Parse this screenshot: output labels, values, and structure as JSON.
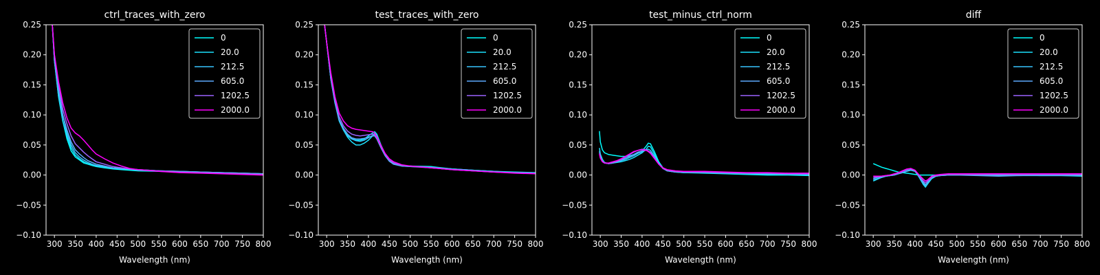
{
  "chart_data": [
    {
      "type": "line",
      "title": "ctrl_traces_with_zero",
      "xlabel": "Wavelength (nm)",
      "ylabel": "",
      "xlim": [
        280,
        800
      ],
      "ylim": [
        -0.1,
        0.25
      ],
      "x_ticks": [
        300,
        350,
        400,
        450,
        500,
        550,
        600,
        650,
        700,
        750,
        800
      ],
      "y_ticks": [
        -0.1,
        -0.05,
        0.0,
        0.05,
        0.1,
        0.15,
        0.2,
        0.25
      ],
      "x_tick_labels": [
        "300",
        "350",
        "400",
        "450",
        "500",
        "550",
        "600",
        "650",
        "700",
        "750",
        "800"
      ],
      "y_tick_labels": [
        "−0.10",
        "−0.05",
        "0.00",
        "0.05",
        "0.10",
        "0.15",
        "0.20",
        "0.25"
      ],
      "legend": "top-right",
      "grid": false,
      "x": [
        295,
        300,
        310,
        320,
        330,
        340,
        350,
        360,
        370,
        380,
        390,
        400,
        420,
        440,
        460,
        480,
        500,
        550,
        600,
        650,
        700,
        750,
        800
      ],
      "series": [
        {
          "name": "0",
          "color": "#00ffff",
          "values": [
            0.25,
            0.19,
            0.13,
            0.09,
            0.06,
            0.04,
            0.03,
            0.025,
            0.02,
            0.018,
            0.016,
            0.014,
            0.012,
            0.01,
            0.009,
            0.008,
            0.007,
            0.006,
            0.005,
            0.004,
            0.003,
            0.002,
            0.002
          ]
        },
        {
          "name": "20.0",
          "color": "#1ce3ff",
          "values": [
            0.25,
            0.19,
            0.13,
            0.09,
            0.065,
            0.045,
            0.033,
            0.027,
            0.022,
            0.019,
            0.017,
            0.015,
            0.013,
            0.011,
            0.01,
            0.009,
            0.008,
            0.007,
            0.006,
            0.005,
            0.004,
            0.003,
            0.002
          ]
        },
        {
          "name": "212.5",
          "color": "#39c6ff",
          "values": [
            0.25,
            0.19,
            0.14,
            0.1,
            0.07,
            0.05,
            0.037,
            0.03,
            0.025,
            0.021,
            0.018,
            0.016,
            0.014,
            0.012,
            0.011,
            0.01,
            0.009,
            0.007,
            0.006,
            0.005,
            0.004,
            0.003,
            0.002
          ]
        },
        {
          "name": "605.0",
          "color": "#5daaff",
          "values": [
            0.25,
            0.19,
            0.14,
            0.1,
            0.075,
            0.055,
            0.042,
            0.035,
            0.029,
            0.024,
            0.021,
            0.018,
            0.015,
            0.012,
            0.011,
            0.01,
            0.009,
            0.007,
            0.006,
            0.005,
            0.004,
            0.003,
            0.002
          ]
        },
        {
          "name": "1202.5",
          "color": "#9c63ff",
          "values": [
            0.25,
            0.2,
            0.15,
            0.11,
            0.085,
            0.065,
            0.052,
            0.045,
            0.038,
            0.032,
            0.027,
            0.022,
            0.018,
            0.014,
            0.012,
            0.01,
            0.009,
            0.007,
            0.005,
            0.004,
            0.003,
            0.002,
            0.001
          ]
        },
        {
          "name": "2000.0",
          "color": "#ff00ff",
          "values": [
            0.25,
            0.2,
            0.155,
            0.12,
            0.095,
            0.078,
            0.07,
            0.065,
            0.058,
            0.05,
            0.042,
            0.035,
            0.027,
            0.02,
            0.015,
            0.011,
            0.009,
            0.006,
            0.004,
            0.003,
            0.002,
            0.001,
            0.0
          ]
        }
      ]
    },
    {
      "type": "line",
      "title": "test_traces_with_zero",
      "xlabel": "Wavelength (nm)",
      "ylabel": "",
      "xlim": [
        280,
        800
      ],
      "ylim": [
        -0.1,
        0.25
      ],
      "x_ticks": [
        300,
        350,
        400,
        450,
        500,
        550,
        600,
        650,
        700,
        750,
        800
      ],
      "y_ticks": [
        -0.1,
        -0.05,
        0.0,
        0.05,
        0.1,
        0.15,
        0.2,
        0.25
      ],
      "x_tick_labels": [
        "300",
        "350",
        "400",
        "450",
        "500",
        "550",
        "600",
        "650",
        "700",
        "750",
        "800"
      ],
      "y_tick_labels": [
        "−0.10",
        "−0.05",
        "0.00",
        "0.05",
        "0.10",
        "0.15",
        "0.20",
        "0.25"
      ],
      "legend": "top-right",
      "grid": false,
      "x": [
        295,
        300,
        310,
        320,
        330,
        340,
        350,
        360,
        370,
        380,
        390,
        400,
        410,
        415,
        420,
        430,
        440,
        450,
        460,
        480,
        500,
        550,
        600,
        650,
        700,
        750,
        800
      ],
      "series": [
        {
          "name": "0",
          "color": "#00ffff",
          "values": [
            0.25,
            0.22,
            0.16,
            0.12,
            0.09,
            0.075,
            0.065,
            0.06,
            0.058,
            0.058,
            0.06,
            0.065,
            0.07,
            0.072,
            0.068,
            0.05,
            0.035,
            0.025,
            0.02,
            0.016,
            0.015,
            0.014,
            0.01,
            0.008,
            0.006,
            0.005,
            0.004
          ]
        },
        {
          "name": "20.0",
          "color": "#1ce3ff",
          "values": [
            0.25,
            0.22,
            0.16,
            0.12,
            0.09,
            0.075,
            0.063,
            0.055,
            0.05,
            0.05,
            0.053,
            0.058,
            0.065,
            0.07,
            0.066,
            0.048,
            0.033,
            0.023,
            0.018,
            0.015,
            0.014,
            0.013,
            0.01,
            0.008,
            0.006,
            0.004,
            0.003
          ]
        },
        {
          "name": "212.5",
          "color": "#39c6ff",
          "values": [
            0.25,
            0.22,
            0.16,
            0.12,
            0.092,
            0.077,
            0.066,
            0.06,
            0.057,
            0.056,
            0.058,
            0.062,
            0.066,
            0.067,
            0.063,
            0.047,
            0.033,
            0.024,
            0.019,
            0.016,
            0.015,
            0.013,
            0.01,
            0.008,
            0.006,
            0.004,
            0.003
          ]
        },
        {
          "name": "605.0",
          "color": "#5daaff",
          "values": [
            0.25,
            0.22,
            0.16,
            0.12,
            0.092,
            0.078,
            0.068,
            0.062,
            0.06,
            0.06,
            0.061,
            0.063,
            0.065,
            0.065,
            0.06,
            0.045,
            0.032,
            0.023,
            0.018,
            0.015,
            0.014,
            0.012,
            0.009,
            0.007,
            0.005,
            0.004,
            0.003
          ]
        },
        {
          "name": "1202.5",
          "color": "#9c63ff",
          "values": [
            0.25,
            0.22,
            0.165,
            0.125,
            0.097,
            0.082,
            0.073,
            0.068,
            0.066,
            0.065,
            0.066,
            0.067,
            0.068,
            0.067,
            0.062,
            0.047,
            0.034,
            0.025,
            0.02,
            0.016,
            0.015,
            0.012,
            0.009,
            0.007,
            0.005,
            0.004,
            0.003
          ]
        },
        {
          "name": "2000.0",
          "color": "#ff00ff",
          "values": [
            0.25,
            0.22,
            0.17,
            0.13,
            0.103,
            0.09,
            0.082,
            0.078,
            0.076,
            0.075,
            0.074,
            0.073,
            0.072,
            0.07,
            0.064,
            0.049,
            0.036,
            0.027,
            0.022,
            0.017,
            0.015,
            0.012,
            0.009,
            0.007,
            0.005,
            0.003,
            0.002
          ]
        }
      ]
    },
    {
      "type": "line",
      "title": "test_minus_ctrl_norm",
      "xlabel": "Wavelength (nm)",
      "ylabel": "",
      "xlim": [
        280,
        800
      ],
      "ylim": [
        -0.1,
        0.25
      ],
      "x_ticks": [
        300,
        350,
        400,
        450,
        500,
        550,
        600,
        650,
        700,
        750,
        800
      ],
      "y_ticks": [
        -0.1,
        -0.05,
        0.0,
        0.05,
        0.1,
        0.15,
        0.2,
        0.25
      ],
      "x_tick_labels": [
        "300",
        "350",
        "400",
        "450",
        "500",
        "550",
        "600",
        "650",
        "700",
        "750",
        "800"
      ],
      "y_tick_labels": [
        "−0.10",
        "−0.05",
        "0.00",
        "0.05",
        "0.10",
        "0.15",
        "0.20",
        "0.25"
      ],
      "legend": "top-right",
      "grid": false,
      "x": [
        298,
        300,
        305,
        310,
        320,
        330,
        340,
        350,
        360,
        370,
        380,
        390,
        400,
        410,
        415,
        420,
        430,
        440,
        450,
        460,
        480,
        500,
        550,
        600,
        650,
        700,
        750,
        800
      ],
      "series": [
        {
          "name": "0",
          "color": "#00ffff",
          "values": [
            0.073,
            0.055,
            0.042,
            0.037,
            0.034,
            0.033,
            0.032,
            0.031,
            0.031,
            0.032,
            0.034,
            0.037,
            0.04,
            0.048,
            0.053,
            0.052,
            0.038,
            0.022,
            0.012,
            0.008,
            0.005,
            0.004,
            0.003,
            0.002,
            0.001,
            0.0,
            0.0,
            -0.001
          ]
        },
        {
          "name": "20.0",
          "color": "#1ce3ff",
          "values": [
            0.045,
            0.035,
            0.026,
            0.021,
            0.019,
            0.02,
            0.021,
            0.022,
            0.024,
            0.026,
            0.029,
            0.033,
            0.037,
            0.043,
            0.048,
            0.047,
            0.034,
            0.02,
            0.011,
            0.007,
            0.005,
            0.004,
            0.004,
            0.003,
            0.002,
            0.001,
            0.001,
            0.0
          ]
        },
        {
          "name": "212.5",
          "color": "#39c6ff",
          "values": [
            0.04,
            0.031,
            0.024,
            0.02,
            0.019,
            0.02,
            0.022,
            0.024,
            0.026,
            0.029,
            0.032,
            0.036,
            0.039,
            0.042,
            0.043,
            0.041,
            0.031,
            0.019,
            0.011,
            0.007,
            0.005,
            0.005,
            0.004,
            0.003,
            0.002,
            0.002,
            0.001,
            0.001
          ]
        },
        {
          "name": "605.0",
          "color": "#5daaff",
          "values": [
            0.038,
            0.03,
            0.023,
            0.02,
            0.019,
            0.02,
            0.022,
            0.025,
            0.028,
            0.031,
            0.034,
            0.038,
            0.04,
            0.041,
            0.04,
            0.038,
            0.029,
            0.018,
            0.011,
            0.007,
            0.005,
            0.005,
            0.004,
            0.003,
            0.003,
            0.002,
            0.002,
            0.001
          ]
        },
        {
          "name": "1202.5",
          "color": "#9c63ff",
          "values": [
            0.036,
            0.029,
            0.023,
            0.02,
            0.019,
            0.021,
            0.023,
            0.026,
            0.03,
            0.034,
            0.038,
            0.041,
            0.043,
            0.042,
            0.04,
            0.037,
            0.028,
            0.018,
            0.011,
            0.008,
            0.006,
            0.005,
            0.005,
            0.004,
            0.003,
            0.003,
            0.002,
            0.002
          ]
        },
        {
          "name": "2000.0",
          "color": "#ff00ff",
          "values": [
            0.035,
            0.028,
            0.022,
            0.02,
            0.02,
            0.022,
            0.024,
            0.027,
            0.031,
            0.035,
            0.039,
            0.041,
            0.042,
            0.041,
            0.039,
            0.036,
            0.027,
            0.018,
            0.012,
            0.009,
            0.007,
            0.006,
            0.006,
            0.005,
            0.004,
            0.004,
            0.003,
            0.003
          ]
        }
      ]
    },
    {
      "type": "line",
      "title": "diff",
      "xlabel": "Wavelength (nm)",
      "ylabel": "",
      "xlim": [
        280,
        800
      ],
      "ylim": [
        -0.1,
        0.25
      ],
      "x_ticks": [
        300,
        350,
        400,
        450,
        500,
        550,
        600,
        650,
        700,
        750,
        800
      ],
      "y_ticks": [
        -0.1,
        -0.05,
        0.0,
        0.05,
        0.1,
        0.15,
        0.2,
        0.25
      ],
      "x_tick_labels": [
        "300",
        "350",
        "400",
        "450",
        "500",
        "550",
        "600",
        "650",
        "700",
        "750",
        "800"
      ],
      "y_tick_labels": [
        "−0.10",
        "−0.05",
        "0.00",
        "0.05",
        "0.10",
        "0.15",
        "0.20",
        "0.25"
      ],
      "legend": "top-right",
      "grid": false,
      "x": [
        300,
        310,
        320,
        330,
        340,
        350,
        360,
        370,
        380,
        390,
        400,
        410,
        420,
        425,
        430,
        440,
        450,
        460,
        480,
        500,
        550,
        600,
        650,
        700,
        750,
        800
      ],
      "series": [
        {
          "name": "0",
          "color": "#00ffff",
          "values": [
            0.019,
            0.016,
            0.013,
            0.011,
            0.009,
            0.007,
            0.005,
            0.004,
            0.003,
            0.002,
            0.001,
            0.0,
            0.0,
            0.0,
            0.0,
            0.0,
            0.0,
            0.0,
            0.0,
            0.0,
            0.0,
            0.0,
            0.0,
            0.0,
            0.0,
            0.0
          ]
        },
        {
          "name": "20.0",
          "color": "#1ce3ff",
          "values": [
            -0.01,
            -0.007,
            -0.004,
            -0.002,
            -0.001,
            0.0,
            0.002,
            0.004,
            0.007,
            0.009,
            0.007,
            -0.004,
            -0.016,
            -0.02,
            -0.015,
            -0.006,
            -0.002,
            -0.001,
            0.0,
            0.0,
            0.0,
            0.0,
            -0.001,
            -0.001,
            -0.001,
            -0.002
          ]
        },
        {
          "name": "212.5",
          "color": "#39c6ff",
          "values": [
            -0.008,
            -0.006,
            -0.004,
            -0.002,
            -0.001,
            0.0,
            0.002,
            0.004,
            0.006,
            0.008,
            0.006,
            -0.003,
            -0.014,
            -0.018,
            -0.013,
            -0.005,
            -0.002,
            -0.001,
            0.0,
            0.0,
            0.0,
            0.0,
            0.0,
            -0.001,
            -0.001,
            -0.001
          ]
        },
        {
          "name": "605.0",
          "color": "#5daaff",
          "values": [
            -0.006,
            -0.004,
            -0.003,
            -0.002,
            -0.001,
            0.0,
            0.002,
            0.004,
            0.007,
            0.009,
            0.007,
            -0.002,
            -0.012,
            -0.016,
            -0.012,
            -0.004,
            -0.002,
            -0.001,
            0.0,
            0.0,
            -0.001,
            -0.002,
            -0.001,
            0.0,
            0.0,
            0.0
          ]
        },
        {
          "name": "1202.5",
          "color": "#9c63ff",
          "values": [
            -0.004,
            -0.003,
            -0.002,
            -0.001,
            0.0,
            0.001,
            0.003,
            0.006,
            0.009,
            0.011,
            0.008,
            -0.001,
            -0.01,
            -0.013,
            -0.01,
            -0.003,
            -0.001,
            0.0,
            0.001,
            0.001,
            0.001,
            0.001,
            0.001,
            0.001,
            0.001,
            0.001
          ]
        },
        {
          "name": "2000.0",
          "color": "#ff00ff",
          "values": [
            -0.002,
            -0.002,
            -0.002,
            -0.001,
            0.0,
            0.002,
            0.004,
            0.007,
            0.01,
            0.011,
            0.008,
            0.0,
            -0.007,
            -0.01,
            -0.008,
            -0.002,
            0.0,
            0.001,
            0.002,
            0.002,
            0.002,
            0.002,
            0.002,
            0.002,
            0.002,
            0.002
          ]
        }
      ]
    }
  ]
}
